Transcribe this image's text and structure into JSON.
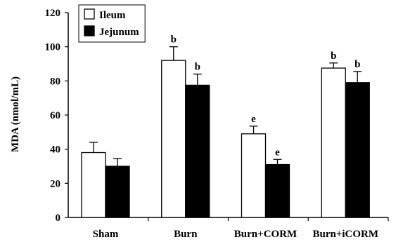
{
  "chart_data": {
    "type": "bar",
    "title": "",
    "xlabel": "",
    "ylabel": "MDA (nmol/mL)",
    "ylim": [
      0,
      120
    ],
    "yticks": [
      "0",
      "20",
      "40",
      "60",
      "80",
      "100",
      "120"
    ],
    "categories": [
      "Sham",
      "Burn",
      "Burn+CORM",
      "Burn+iCORM"
    ],
    "grid": false,
    "legend": "top-left",
    "series": [
      {
        "name": "Ileum",
        "fill": "#ffffff",
        "values": [
          38,
          92,
          49,
          87.5
        ],
        "errors": [
          6,
          8,
          4.5,
          3
        ],
        "labels": [
          "",
          "b",
          "e",
          "b"
        ]
      },
      {
        "name": "Jejunum",
        "fill": "#000000",
        "values": [
          30,
          77.5,
          31,
          79
        ],
        "errors": [
          4.5,
          6.5,
          3,
          6.5
        ],
        "labels": [
          "",
          "b",
          "e",
          "b"
        ]
      }
    ]
  }
}
